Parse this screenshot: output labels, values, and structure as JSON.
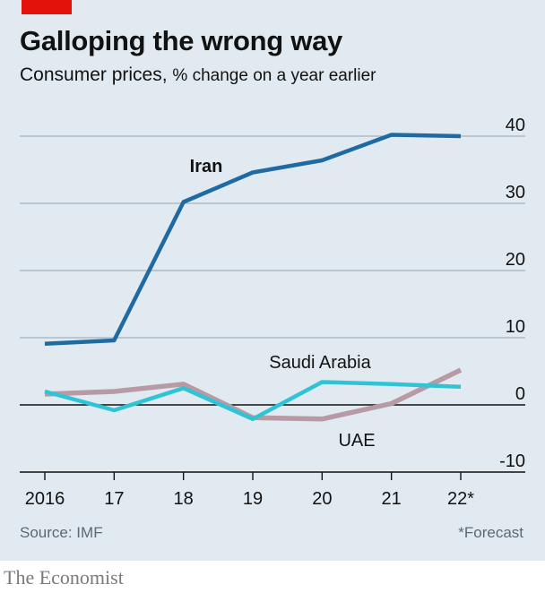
{
  "title": "Galloping the wrong way",
  "subtitle_main": "Consumer prices,",
  "subtitle_unit": "% change on a year earlier",
  "source": "Source: IMF",
  "footnote": "*Forecast",
  "brand": "The Economist",
  "colors": {
    "background": "#e0eaf0",
    "accent": "#e3120b",
    "iran": "#1f6aa1",
    "saudi": "#2ec4d6",
    "uae": "#b79aa4"
  },
  "chart_data": {
    "type": "line",
    "x": [
      2016,
      2017,
      2018,
      2019,
      2020,
      2021,
      2022
    ],
    "tick_labels_x": [
      "2016",
      "17",
      "18",
      "19",
      "20",
      "21",
      "22*"
    ],
    "ylim": [
      -10,
      40
    ],
    "yticks": [
      40,
      30,
      20,
      10,
      0,
      -10
    ],
    "grid": true,
    "series": [
      {
        "name": "Iran",
        "values": [
          9.1,
          9.6,
          30.2,
          34.6,
          36.4,
          40.2,
          40.0
        ]
      },
      {
        "name": "UAE",
        "values": [
          1.6,
          2.0,
          3.1,
          -1.9,
          -2.1,
          0.2,
          5.2
        ]
      },
      {
        "name": "Saudi Arabia",
        "values": [
          2.0,
          -0.8,
          2.5,
          -2.1,
          3.4,
          3.1,
          2.7
        ]
      }
    ]
  }
}
